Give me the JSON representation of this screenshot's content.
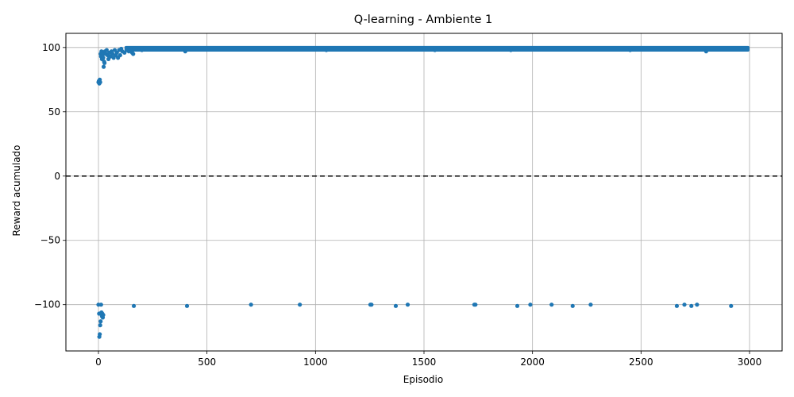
{
  "chart_data": {
    "type": "scatter",
    "title": "Q-learning - Ambiente 1",
    "xlabel": "Episodio",
    "ylabel": "Reward acumulado",
    "xlim": [
      -150,
      3150
    ],
    "ylim": [
      -136,
      111
    ],
    "xticks": [
      0,
      500,
      1000,
      1500,
      2000,
      2500,
      3000
    ],
    "yticks": [
      -100,
      -50,
      0,
      50,
      100
    ],
    "xtick_labels": [
      "0",
      "500",
      "1000",
      "1500",
      "2000",
      "2500",
      "3000"
    ],
    "ytick_labels": [
      "−100",
      "−50",
      "0",
      "50",
      "100"
    ],
    "grid": true,
    "reference_line": {
      "y": 0,
      "style": "dashed",
      "color": "#000000"
    },
    "series": [
      {
        "color": "#1f77b4",
        "band": {
          "x_start": 120,
          "x_end": 3000,
          "y_min": 98,
          "y_max": 100
        },
        "points": [
          {
            "x": 0,
            "y": 73
          },
          {
            "x": 2,
            "y": 74
          },
          {
            "x": 4,
            "y": 72
          },
          {
            "x": 6,
            "y": 75
          },
          {
            "x": 8,
            "y": 73
          },
          {
            "x": 0,
            "y": -100
          },
          {
            "x": 3,
            "y": -107
          },
          {
            "x": 4,
            "y": -125
          },
          {
            "x": 6,
            "y": -123
          },
          {
            "x": 8,
            "y": -116
          },
          {
            "x": 10,
            "y": -113
          },
          {
            "x": 12,
            "y": -100
          },
          {
            "x": 14,
            "y": -106
          },
          {
            "x": 16,
            "y": -109
          },
          {
            "x": 18,
            "y": -107
          },
          {
            "x": 20,
            "y": -110
          },
          {
            "x": 22,
            "y": -108
          },
          {
            "x": 10,
            "y": 95
          },
          {
            "x": 12,
            "y": 93
          },
          {
            "x": 14,
            "y": 97
          },
          {
            "x": 16,
            "y": 91
          },
          {
            "x": 18,
            "y": 94
          },
          {
            "x": 20,
            "y": 96
          },
          {
            "x": 22,
            "y": 92
          },
          {
            "x": 24,
            "y": 85
          },
          {
            "x": 26,
            "y": 89
          },
          {
            "x": 28,
            "y": 88
          },
          {
            "x": 30,
            "y": 97
          },
          {
            "x": 34,
            "y": 95
          },
          {
            "x": 38,
            "y": 98
          },
          {
            "x": 42,
            "y": 94
          },
          {
            "x": 46,
            "y": 91
          },
          {
            "x": 50,
            "y": 96
          },
          {
            "x": 55,
            "y": 93
          },
          {
            "x": 60,
            "y": 97
          },
          {
            "x": 65,
            "y": 95
          },
          {
            "x": 70,
            "y": 92
          },
          {
            "x": 75,
            "y": 98
          },
          {
            "x": 80,
            "y": 94
          },
          {
            "x": 85,
            "y": 96
          },
          {
            "x": 90,
            "y": 92
          },
          {
            "x": 95,
            "y": 98
          },
          {
            "x": 100,
            "y": 94
          },
          {
            "x": 105,
            "y": 99
          },
          {
            "x": 110,
            "y": 97
          },
          {
            "x": 120,
            "y": 96
          },
          {
            "x": 130,
            "y": 98
          },
          {
            "x": 140,
            "y": 97
          },
          {
            "x": 150,
            "y": 98
          },
          {
            "x": 155,
            "y": 96
          },
          {
            "x": 160,
            "y": 95
          },
          {
            "x": 200,
            "y": 98
          },
          {
            "x": 400,
            "y": 97
          },
          {
            "x": 1050,
            "y": 98
          },
          {
            "x": 1550,
            "y": 98
          },
          {
            "x": 1900,
            "y": 98
          },
          {
            "x": 2450,
            "y": 98
          },
          {
            "x": 2800,
            "y": 97
          },
          {
            "x": 163,
            "y": -101
          },
          {
            "x": 408,
            "y": -101
          },
          {
            "x": 703,
            "y": -100
          },
          {
            "x": 928,
            "y": -100
          },
          {
            "x": 1253,
            "y": -100
          },
          {
            "x": 1258,
            "y": -100
          },
          {
            "x": 1370,
            "y": -101
          },
          {
            "x": 1425,
            "y": -100
          },
          {
            "x": 1732,
            "y": -100
          },
          {
            "x": 1737,
            "y": -100
          },
          {
            "x": 1930,
            "y": -101
          },
          {
            "x": 1990,
            "y": -100
          },
          {
            "x": 2088,
            "y": -100
          },
          {
            "x": 2185,
            "y": -101
          },
          {
            "x": 2268,
            "y": -100
          },
          {
            "x": 2665,
            "y": -101
          },
          {
            "x": 2700,
            "y": -100
          },
          {
            "x": 2732,
            "y": -101
          },
          {
            "x": 2758,
            "y": -100
          },
          {
            "x": 2915,
            "y": -101
          }
        ]
      }
    ]
  }
}
